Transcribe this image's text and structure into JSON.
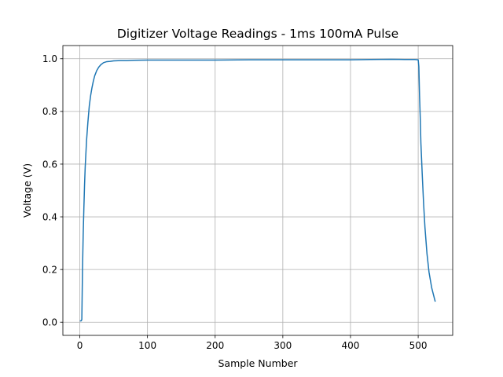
{
  "chart_data": {
    "type": "line",
    "title": "Digitizer Voltage Readings - 1ms 100mA Pulse",
    "xlabel": "Sample Number",
    "ylabel": "Voltage (V)",
    "xlim": [
      -25,
      551
    ],
    "ylim": [
      -0.05,
      1.05
    ],
    "xticks": [
      0,
      100,
      200,
      300,
      400,
      500
    ],
    "yticks": [
      0.0,
      0.2,
      0.4,
      0.6,
      0.8,
      1.0
    ],
    "xtick_labels": [
      "0",
      "100",
      "200",
      "300",
      "400",
      "500"
    ],
    "ytick_labels": [
      "0.0",
      "0.2",
      "0.4",
      "0.6",
      "0.8",
      "1.0"
    ],
    "grid": true,
    "colors": {
      "series": "#1f77b4",
      "grid": "#b0b0b0"
    },
    "series": [
      {
        "x": [
          1,
          2,
          3,
          4,
          5,
          6,
          7,
          8,
          10,
          12,
          14,
          16,
          18,
          20,
          22,
          25,
          28,
          31,
          35,
          40,
          45,
          50,
          60,
          70,
          80,
          100,
          130,
          150,
          200,
          250,
          300,
          350,
          400,
          430,
          460,
          480,
          495,
          500,
          501,
          502,
          503,
          504,
          506,
          508,
          510,
          513,
          516,
          520,
          525
        ],
        "y": [
          0.005,
          0.005,
          0.01,
          0.2,
          0.33,
          0.43,
          0.52,
          0.59,
          0.69,
          0.76,
          0.82,
          0.86,
          0.89,
          0.915,
          0.935,
          0.955,
          0.968,
          0.977,
          0.985,
          0.989,
          0.99,
          0.992,
          0.993,
          0.993,
          0.994,
          0.995,
          0.995,
          0.995,
          0.995,
          0.996,
          0.996,
          0.996,
          0.996,
          0.997,
          0.998,
          0.997,
          0.997,
          0.996,
          0.97,
          0.86,
          0.78,
          0.68,
          0.56,
          0.45,
          0.36,
          0.26,
          0.19,
          0.13,
          0.08
        ]
      }
    ]
  }
}
